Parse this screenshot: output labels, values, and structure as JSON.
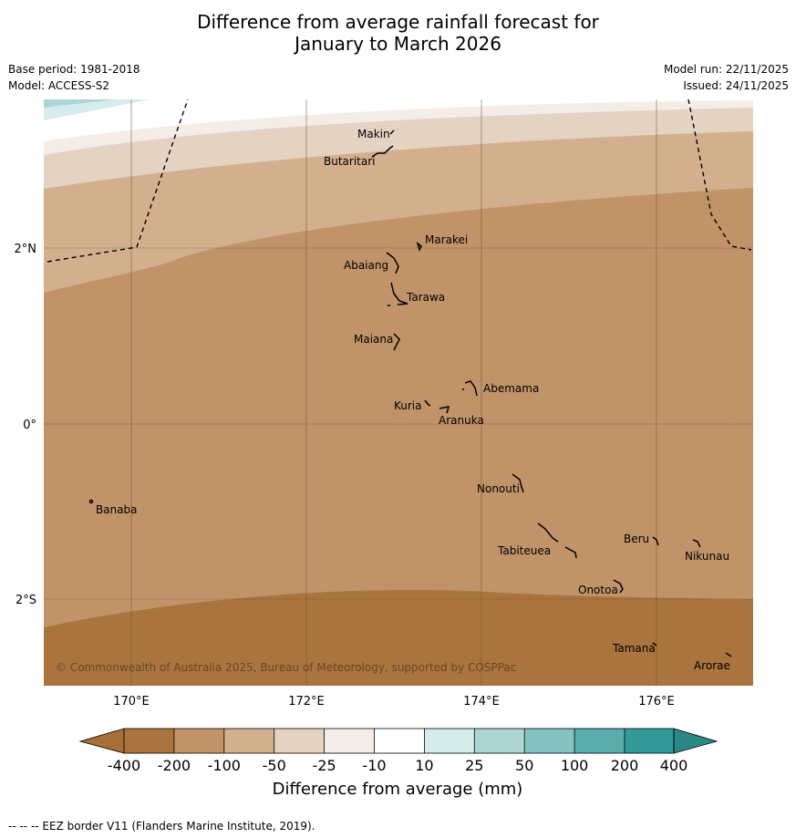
{
  "title": {
    "line1": "Difference from average rainfall forecast for",
    "line2": "January to March 2026"
  },
  "meta": {
    "base_period": "Base period: 1981-2018",
    "model": "Model: ACCESS-S2",
    "model_run": "Model run: 22/11/2025",
    "issued": "Issued: 24/11/2025"
  },
  "map": {
    "lon_labels": [
      "170°E",
      "172°E",
      "174°E",
      "176°E"
    ],
    "lat_labels": [
      "2°N",
      "0°",
      "2°S"
    ],
    "copyright": "© Commonwealth of Australia 2025, Bureau of Meteorology, supported by COSPPac",
    "islands": [
      "Makin",
      "Butaritari",
      "Marakei",
      "Abaiang",
      "Tarawa",
      "Maiana",
      "Abemama",
      "Kuria",
      "Aranuka",
      "Nonouti",
      "Banaba",
      "Tabiteuea",
      "Beru",
      "Nikunau",
      "Onotoa",
      "Tamana",
      "Arorae"
    ]
  },
  "legend": {
    "tick_labels": [
      "-400",
      "-200",
      "-100",
      "-50",
      "-25",
      "-10",
      "10",
      "25",
      "50",
      "100",
      "200",
      "400"
    ],
    "title": "Difference from average (mm)",
    "colors": {
      "lt_neg400": "#a87038",
      "neg400_neg200": "#aa743e",
      "neg200_neg100": "#c09468",
      "neg100_neg50": "#d2b08e",
      "neg50_neg25": "#e4d2c2",
      "neg25_neg10": "#f4ece6",
      "neg10_pos10": "#ffffff",
      "pos10_pos25": "#d6eceb",
      "pos25_pos50": "#acd6d4",
      "pos50_pos100": "#84c2c0",
      "pos100_pos200": "#5aadab",
      "pos200_pos400": "#329a98",
      "gt_pos400": "#2a8886"
    }
  },
  "footnote": "--  --  -- EEZ border V11 (Flanders Marine Institute, 2019)."
}
